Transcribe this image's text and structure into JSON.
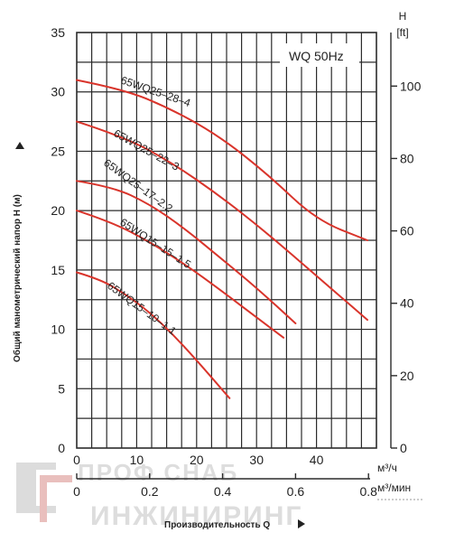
{
  "chart_data": {
    "type": "line",
    "annotation": "WQ 50Hz",
    "ylabel": "Общий манометрический напор Н (м)",
    "xlabel": "Производительность Q",
    "y2label": [
      "H",
      "[ft]"
    ],
    "x_units": [
      "м³/ч",
      "м³/мин"
    ],
    "xlim": [
      0,
      50
    ],
    "ylim": [
      0,
      35
    ],
    "y2lim": [
      0,
      114.8
    ],
    "x_ticks": [
      0,
      10,
      20,
      30,
      40
    ],
    "x2_ticks": [
      "0",
      "0.2",
      "0.4",
      "0.6",
      "0.8"
    ],
    "x2_tick_values": [
      0,
      0.2,
      0.4,
      0.6,
      0.8
    ],
    "y_ticks": [
      0,
      5,
      10,
      15,
      20,
      25,
      30,
      35
    ],
    "y2_ticks": [
      0,
      20,
      40,
      60,
      80,
      100
    ],
    "grid": true,
    "series": [
      {
        "name": "65WQ25-28-4",
        "x": [
          0,
          8,
          16,
          24,
          32,
          40,
          48.5
        ],
        "y": [
          31.0,
          30.2,
          28.5,
          26.2,
          23.0,
          19.2,
          17.5
        ]
      },
      {
        "name": "65WQ25-22-3",
        "x": [
          0,
          8,
          16,
          24,
          32,
          40,
          48.5
        ],
        "y": [
          27.5,
          26.2,
          24.0,
          21.2,
          18.0,
          14.5,
          10.8
        ]
      },
      {
        "name": "65WQ25-17-2.2",
        "x": [
          0,
          6,
          12,
          18,
          24,
          30,
          36.5
        ],
        "y": [
          22.5,
          22.0,
          20.6,
          18.5,
          16.0,
          13.5,
          10.5
        ]
      },
      {
        "name": "65WQ15-15-1.5",
        "x": [
          0,
          6,
          12,
          18,
          24,
          30,
          34.5
        ],
        "y": [
          20.0,
          19.0,
          17.4,
          15.5,
          13.3,
          11.0,
          9.3
        ]
      },
      {
        "name": "65WQ15-10-1.1",
        "x": [
          0,
          4,
          8,
          12,
          16,
          20,
          25.5
        ],
        "y": [
          14.8,
          14.2,
          13.0,
          11.5,
          9.6,
          7.4,
          4.2
        ]
      }
    ],
    "series_label_text": [
      "65WQ25–28–4",
      "65WQ25–22–3",
      "65WQ25–17–2.2",
      "65WQ15–15–1.5",
      "65WQ15–10–1.1"
    ],
    "colors": {
      "curve": "#d9342b",
      "grid": "#2b2b2b",
      "text": "#222222"
    }
  },
  "watermark": {
    "line1": "ПРОФ СНАБ",
    "line2": "ИНЖИНИРИНГ"
  }
}
